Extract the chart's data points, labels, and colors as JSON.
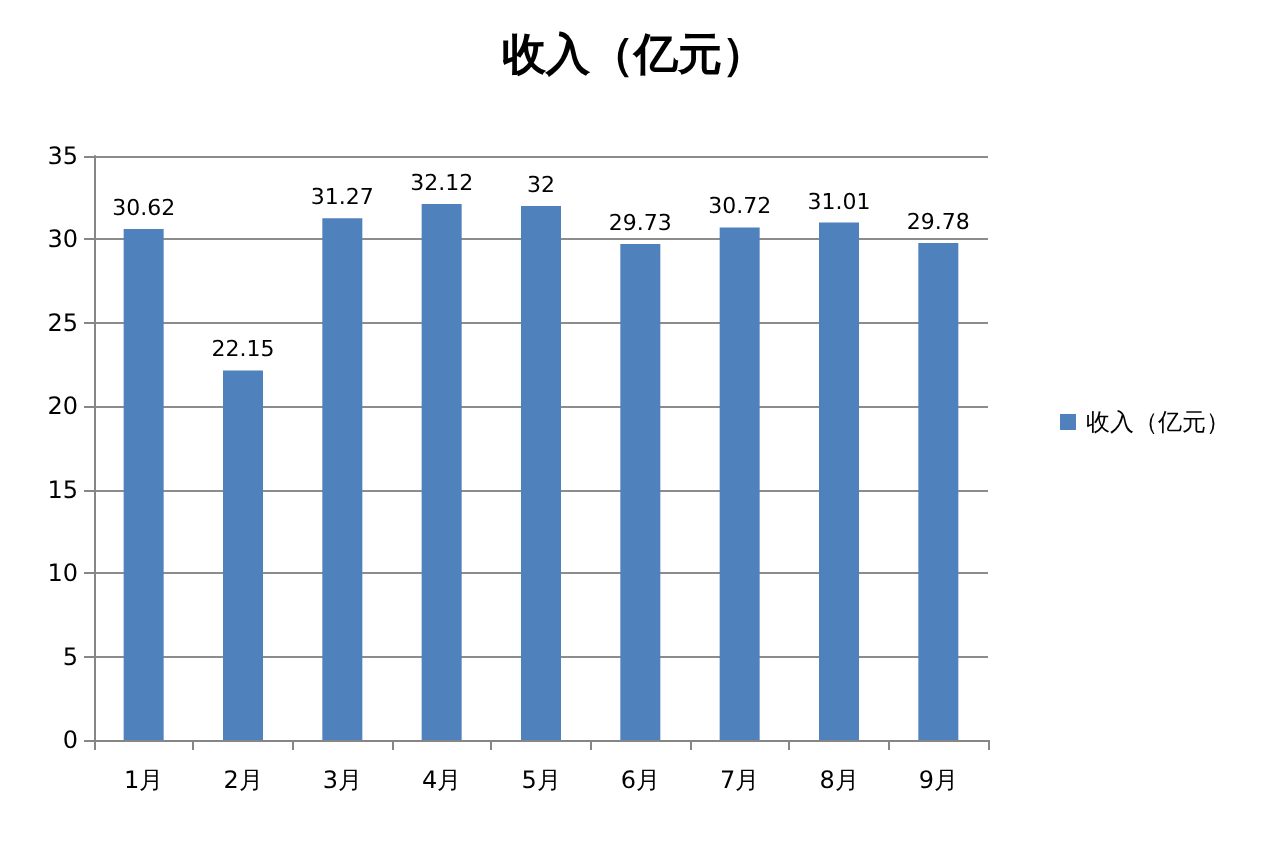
{
  "chart_data": {
    "type": "bar",
    "title": "收入（亿元）",
    "categories": [
      "1月",
      "2月",
      "3月",
      "4月",
      "5月",
      "6月",
      "7月",
      "8月",
      "9月"
    ],
    "series": [
      {
        "name": "收入（亿元）",
        "color": "#4f81bd",
        "values": [
          30.62,
          22.15,
          31.27,
          32.12,
          32,
          29.73,
          30.72,
          31.01,
          29.78
        ]
      }
    ],
    "ylim": [
      0,
      35
    ],
    "yticks": [
      0,
      5,
      10,
      15,
      20,
      25,
      30,
      35
    ],
    "grid": "y",
    "legend": "right",
    "data_labels": true
  }
}
